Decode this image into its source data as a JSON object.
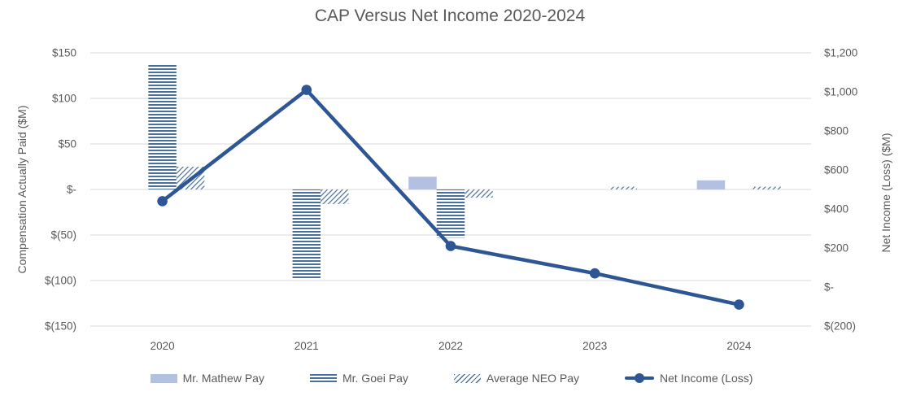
{
  "title": "CAP Versus Net Income 2020-2024",
  "colors": {
    "text": "#595959",
    "gridline": "#d9d9d9",
    "solid_bar": "#b4c0e0",
    "pattern_blue": "#4a6f9b",
    "line_blue": "#2e5694"
  },
  "left_axis": {
    "title": "Compensation Actually Paid ($M)",
    "ticks": [
      "$150",
      "$100",
      "$50",
      "$-",
      "$(50)",
      "$(100)",
      "$(150)"
    ],
    "values": [
      150,
      100,
      50,
      0,
      -50,
      -100,
      -150
    ]
  },
  "right_axis": {
    "title": "Net Income (Loss) ($M)",
    "ticks": [
      "$1,200",
      "$1,000",
      "$800",
      "$600",
      "$400",
      "$200",
      "$-",
      "$(200)"
    ],
    "values": [
      1200,
      1000,
      800,
      600,
      400,
      200,
      0,
      -200
    ]
  },
  "chart_data": {
    "type": "combo (grouped bars + line, dual axis)",
    "categories": [
      "2020",
      "2021",
      "2022",
      "2023",
      "2024"
    ],
    "left_range": [
      -150,
      150
    ],
    "right_range": [
      -200,
      1200
    ],
    "grid": "horizontal, left-axis major units of $50M",
    "legend_position": "bottom",
    "bar_series": [
      {
        "name": "Mr. Mathew Pay",
        "axis": "left",
        "style": "solid",
        "color": "#b4c0e0",
        "values": [
          0,
          0,
          14,
          0,
          10
        ]
      },
      {
        "name": "Mr. Goei Pay",
        "axis": "left",
        "style": "hstripe",
        "color": "#4a6f9b",
        "values": [
          137,
          -99,
          -53,
          0,
          0
        ]
      },
      {
        "name": "Average NEO Pay",
        "axis": "left",
        "style": "diag",
        "color": "#4a6f9b",
        "values": [
          25,
          -16,
          -9,
          3,
          3
        ]
      }
    ],
    "line_series": {
      "name": "Net Income (Loss)",
      "axis": "right",
      "color": "#2e5694",
      "values": [
        440,
        1010,
        210,
        70,
        -90
      ]
    },
    "title": "CAP Versus Net Income 2020-2024",
    "xlabel": "",
    "ylabel_left": "Compensation Actually Paid ($M)",
    "ylabel_right": "Net Income (Loss) ($M)"
  },
  "legend": {
    "items": [
      {
        "label": "Mr. Mathew Pay"
      },
      {
        "label": "Mr. Goei Pay"
      },
      {
        "label": "Average NEO Pay"
      },
      {
        "label": "Net Income (Loss)"
      }
    ]
  }
}
